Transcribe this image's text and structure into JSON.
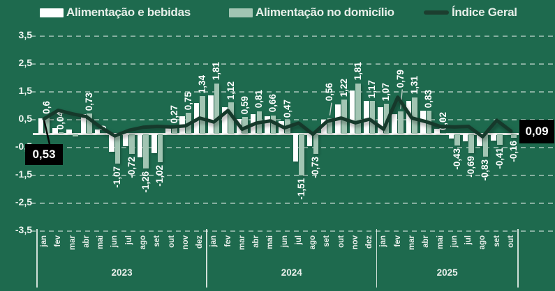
{
  "page": {
    "background": "#1e6a4e",
    "text_color": "#eef4f0",
    "callout_bg": "#000000"
  },
  "legend": {
    "items": [
      {
        "label": "Alimentação e bebidas",
        "type": "bar-swatch",
        "color": "#ffffff"
      },
      {
        "label": "Alimentação no domicílio",
        "type": "bar-swatch",
        "color": "#a2c5b3"
      },
      {
        "label": "Índice Geral",
        "type": "line-swatch",
        "color": "#1c3e2f"
      }
    ]
  },
  "chart_data": {
    "type": "combo",
    "subtype": "grouped bars + line, monthly % variation",
    "years": [
      {
        "label": "2023",
        "months": [
          "jan",
          "fev",
          "mar",
          "abr",
          "mai",
          "jun",
          "jul",
          "ago",
          "set",
          "out",
          "nov",
          "dez"
        ]
      },
      {
        "label": "2024",
        "months": [
          "jan",
          "fev",
          "mar",
          "abr",
          "mai",
          "jun",
          "jul",
          "ago",
          "set",
          "out",
          "nov",
          "dez"
        ]
      },
      {
        "label": "2025",
        "months": [
          "jan",
          "fev",
          "mar",
          "abr",
          "mai",
          "jun",
          "jul",
          "ago",
          "set",
          "out"
        ]
      }
    ],
    "ylim": [
      -3.5,
      3.5
    ],
    "yticks": [
      3.5,
      2.5,
      1.5,
      0.5,
      -0.5,
      -1.5,
      -2.5,
      -3.5
    ],
    "ytick_labels": [
      "3,5",
      "2,5",
      "1,5",
      "0,5",
      "-0,5",
      "-1,5",
      "-2,5",
      "-3,5"
    ],
    "grid": "dashed-horizontal",
    "legend_position": "top",
    "series": [
      {
        "name": "Alimentação e bebidas",
        "type": "bar",
        "color": "#ffffff",
        "values": [
          0.55,
          0.2,
          0.15,
          0.71,
          0.16,
          -0.66,
          -0.46,
          -0.85,
          -0.71,
          0.31,
          0.63,
          1.11,
          1.38,
          0.95,
          0.53,
          0.7,
          0.62,
          0.44,
          -1.01,
          -0.44,
          0.5,
          1.06,
          1.55,
          1.18,
          0.96,
          0.7,
          1.17,
          0.82,
          0.17,
          -0.18,
          -0.27,
          -0.46,
          -0.26,
          -0.03
        ]
      },
      {
        "name": "Alimentação no domicílio",
        "type": "bar",
        "color": "#a2c5b3",
        "values": [
          0.6,
          0.04,
          -0.1,
          0.73,
          0,
          -1.07,
          -0.72,
          -1.26,
          -1.02,
          0.27,
          0.75,
          1.34,
          1.81,
          1.12,
          0.59,
          0.81,
          0.66,
          0.47,
          -1.51,
          -0.73,
          0.56,
          1.22,
          1.81,
          1.17,
          1.07,
          0.79,
          1.31,
          0.83,
          0.02,
          -0.43,
          -0.69,
          -0.83,
          -0.41,
          -0.16
        ],
        "data_labels": [
          "0,6",
          "0,04",
          null,
          "0,73",
          "0",
          "-1,07",
          "-0,72",
          "-1,26",
          "-1,02",
          "0,27",
          "0,75",
          "1,34",
          "1,81",
          "1,12",
          "0,59",
          "0,81",
          "0,66",
          "0,47",
          "-1,51",
          "-0,73",
          "0,56",
          "1,22",
          "1,81",
          "1,17",
          "1,07",
          "0,79",
          "1,31",
          "0,83",
          "0,02",
          "-0,43",
          "-0,69",
          "-0,83",
          "-0,41",
          "-0,16"
        ]
      },
      {
        "name": "Índice Geral",
        "type": "line",
        "color": "#16392b",
        "values": [
          0.53,
          0.84,
          0.71,
          0.61,
          0.23,
          -0.08,
          0.12,
          0.23,
          0.26,
          0.24,
          0.28,
          0.56,
          0.42,
          0.83,
          0.16,
          0.38,
          0.46,
          0.21,
          0.38,
          -0.02,
          0.44,
          0.56,
          0.39,
          0.52,
          0.16,
          1.31,
          0.56,
          0.43,
          0.26,
          0.24,
          0.26,
          -0.11,
          0.48,
          0.09
        ]
      }
    ],
    "label_leaders": [
      {
        "index": 20,
        "raise": 20
      },
      {
        "index": 25,
        "raise": 30
      }
    ],
    "callouts": [
      {
        "series": "Índice Geral",
        "index": 0,
        "text": "0,53",
        "position": "below-left"
      },
      {
        "series": "Índice Geral",
        "index": 33,
        "text": "0,09",
        "position": "right"
      }
    ]
  }
}
